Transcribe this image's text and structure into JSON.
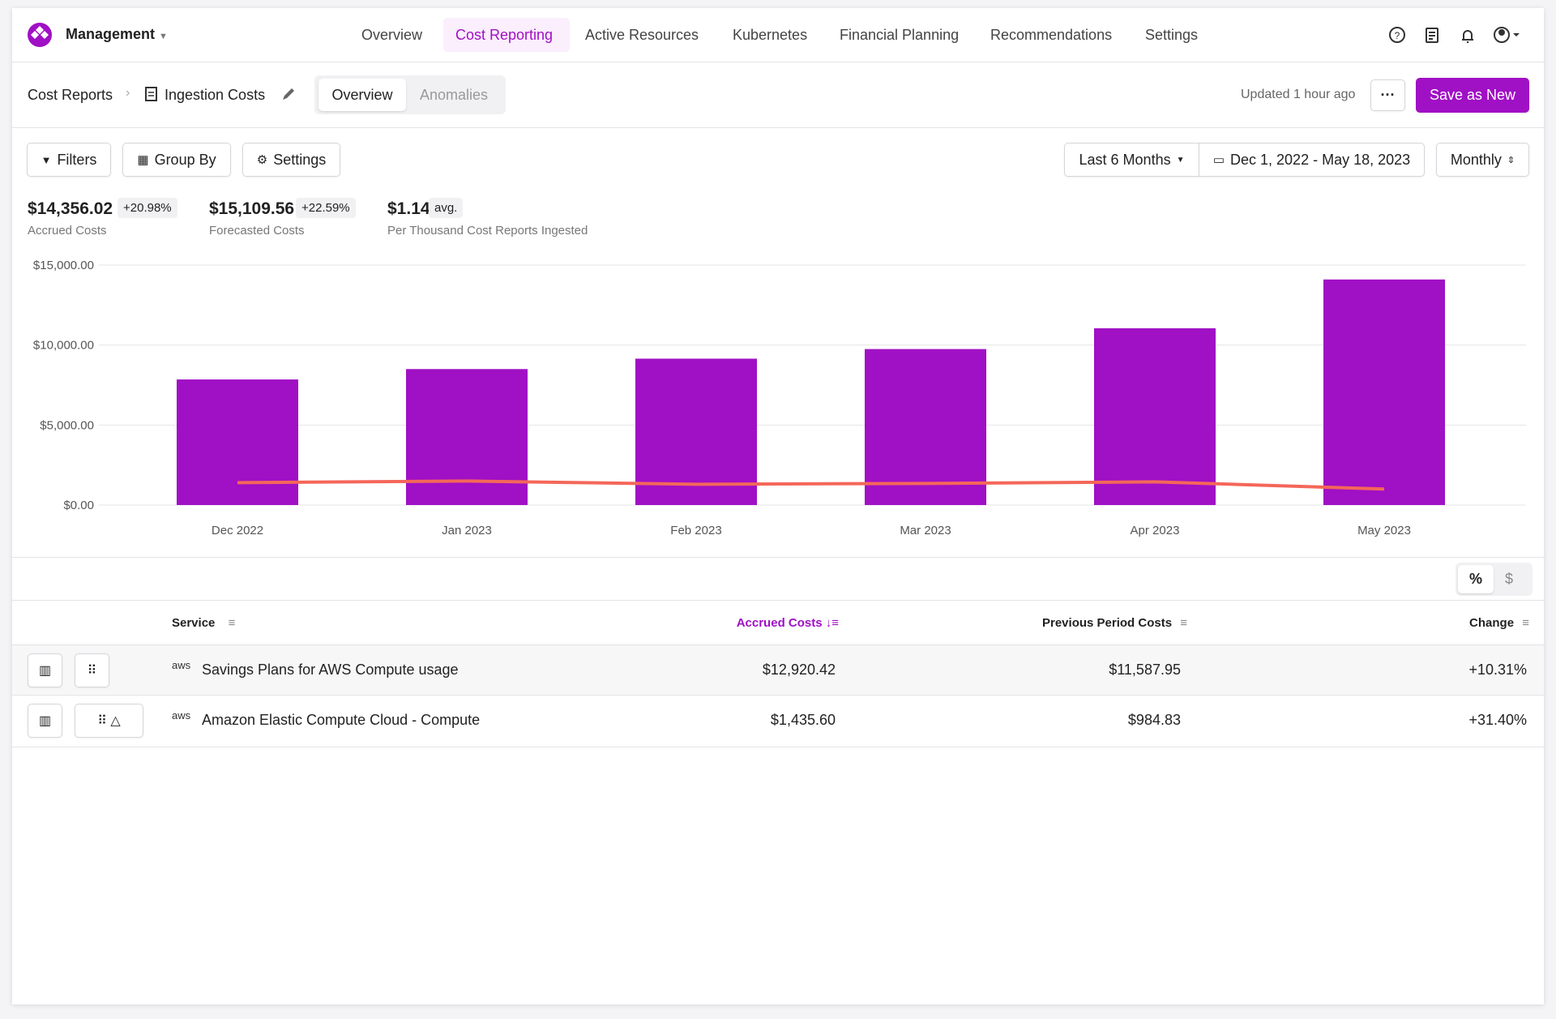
{
  "nav": {
    "org": "Management",
    "items": [
      "Overview",
      "Cost Reporting",
      "Active Resources",
      "Kubernetes",
      "Financial Planning",
      "Recommendations",
      "Settings"
    ]
  },
  "header": {
    "breadcrumb": "Cost Reports",
    "title": "Ingestion Costs",
    "tabs": [
      "Overview",
      "Anomalies"
    ],
    "updated": "Updated 1 hour ago",
    "save": "Save as New"
  },
  "toolbar": {
    "filters": "Filters",
    "group_by": "Group By",
    "settings": "Settings",
    "range": "Last 6 Months",
    "dates": "Dec 1, 2022 - May 18, 2023",
    "interval": "Monthly"
  },
  "stats": [
    {
      "value": "$14,356.02",
      "badge": "+20.98%",
      "label": "Accrued Costs"
    },
    {
      "value": "$15,109.56",
      "badge": "+22.59%",
      "label": "Forecasted Costs"
    },
    {
      "value": "$1.14",
      "badge": "avg.",
      "label": "Per Thousand Cost Reports Ingested"
    }
  ],
  "chart_data": {
    "type": "bar",
    "categories": [
      "Dec 2022",
      "Jan 2023",
      "Feb 2023",
      "Mar 2023",
      "Apr 2023",
      "May 2023"
    ],
    "series": [
      {
        "type": "bar",
        "color": "#a010c4",
        "values": [
          7850,
          8500,
          9150,
          9750,
          11050,
          14100
        ]
      },
      {
        "type": "line",
        "color": "#f4675a",
        "values": [
          1400,
          1500,
          1300,
          1350,
          1450,
          1000
        ]
      }
    ],
    "ylim": [
      0,
      15000
    ],
    "yticks": [
      {
        "value": 0,
        "label": "$0.00"
      },
      {
        "value": 5000,
        "label": "$5,000.00"
      },
      {
        "value": 10000,
        "label": "$10,000.00"
      },
      {
        "value": 15000,
        "label": "$15,000.00"
      }
    ],
    "grid": true
  },
  "toggle": [
    "%",
    "$"
  ],
  "table": {
    "columns": [
      "Service",
      "Accrued Costs",
      "Previous Period Costs",
      "Change"
    ],
    "rows": [
      [
        "Savings Plans for AWS Compute usage",
        "$12,920.42",
        "$11,587.95",
        "+10.31%"
      ],
      [
        "Amazon Elastic Compute Cloud - Compute",
        "$1,435.60",
        "$984.83",
        "+31.40%"
      ]
    ],
    "logo": "aws"
  }
}
